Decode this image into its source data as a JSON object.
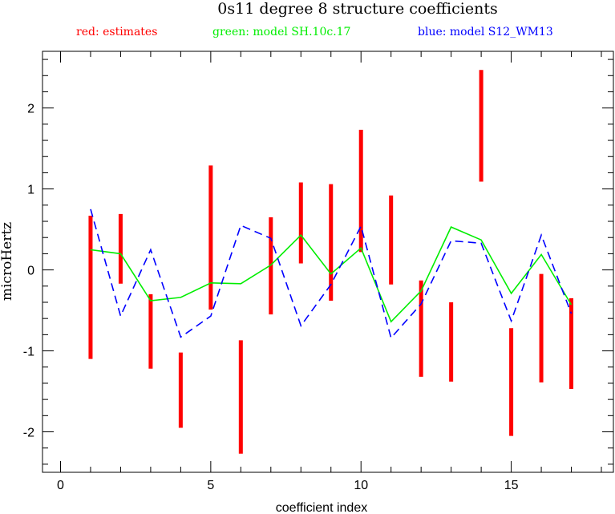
{
  "chart_data": {
    "type": "line",
    "title": "0s11 degree 8 structure coefficients",
    "legend": [
      {
        "label": "red: estimates",
        "color": "#ff0000"
      },
      {
        "label": "green: model SH.10c.17",
        "color": "#00ee00"
      },
      {
        "label": "blue: model S12_WM13",
        "color": "#0000ff"
      }
    ],
    "xlabel": "coefficient index",
    "ylabel": "microHertz",
    "xlim": [
      -0.6,
      18.4
    ],
    "ylim": [
      -2.5,
      2.7
    ],
    "x_ticks": [
      0,
      5,
      10,
      15
    ],
    "y_ticks": [
      -2,
      -1,
      0,
      1,
      2
    ],
    "x_minor_step": 1,
    "y_minor_step": 0.2,
    "estimates": [
      {
        "x": 1,
        "low": -1.1,
        "high": 0.67
      },
      {
        "x": 2,
        "low": -0.17,
        "high": 0.69
      },
      {
        "x": 3,
        "low": -1.22,
        "high": -0.3
      },
      {
        "x": 4,
        "low": -1.95,
        "high": -1.02
      },
      {
        "x": 5,
        "low": -0.49,
        "high": 1.29
      },
      {
        "x": 6,
        "low": -2.27,
        "high": -0.87
      },
      {
        "x": 7,
        "low": -0.55,
        "high": 0.65
      },
      {
        "x": 8,
        "low": 0.08,
        "high": 1.08
      },
      {
        "x": 9,
        "low": -0.38,
        "high": 1.06
      },
      {
        "x": 10,
        "low": 0.22,
        "high": 1.73
      },
      {
        "x": 11,
        "low": -0.18,
        "high": 0.92
      },
      {
        "x": 12,
        "low": -1.32,
        "high": -0.13
      },
      {
        "x": 13,
        "low": -1.38,
        "high": -0.4
      },
      {
        "x": 14,
        "low": 1.09,
        "high": 2.47
      },
      {
        "x": 15,
        "low": -2.05,
        "high": -0.72
      },
      {
        "x": 16,
        "low": -1.39,
        "high": -0.05
      },
      {
        "x": 17,
        "low": -1.47,
        "high": -0.35
      }
    ],
    "series": [
      {
        "name": "model SH.10c.17",
        "color": "#00ee00",
        "style": "solid",
        "x": [
          1,
          2,
          3,
          4,
          5,
          6,
          7,
          8,
          9,
          10,
          11,
          12,
          13,
          14,
          15,
          16,
          17
        ],
        "values": [
          0.25,
          0.2,
          -0.38,
          -0.34,
          -0.16,
          -0.17,
          0.06,
          0.43,
          -0.05,
          0.27,
          -0.64,
          -0.26,
          0.53,
          0.37,
          -0.29,
          0.19,
          -0.43
        ]
      },
      {
        "name": "model S12_WM13",
        "color": "#0000ff",
        "style": "dashed",
        "x": [
          1,
          2,
          3,
          4,
          5,
          6,
          7,
          8,
          9,
          10,
          11,
          12,
          13,
          14,
          15,
          16,
          17
        ],
        "values": [
          0.75,
          -0.57,
          0.25,
          -0.83,
          -0.57,
          0.55,
          0.39,
          -0.69,
          -0.18,
          0.54,
          -0.84,
          -0.42,
          0.36,
          0.33,
          -0.63,
          0.43,
          -0.54
        ]
      }
    ]
  }
}
